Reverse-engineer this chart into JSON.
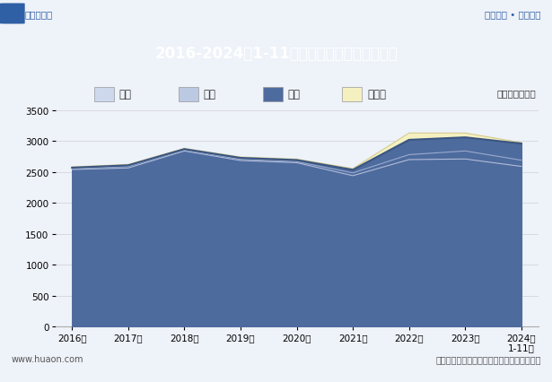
{
  "title": "2016-2024年1-11月河南省各发电类型发电量",
  "unit_label": "单位：亿千瓦时",
  "years": [
    "2016年",
    "2017年",
    "2018年",
    "2019年",
    "2020年",
    "2021年",
    "2022年",
    "2023年",
    "2024年\n1-11月"
  ],
  "fire_power": [
    2540,
    2565,
    2840,
    2685,
    2650,
    2440,
    2700,
    2710,
    2590
  ],
  "wind_power": [
    2555,
    2590,
    2858,
    2705,
    2668,
    2485,
    2780,
    2840,
    2690
  ],
  "water_power": [
    2570,
    2608,
    2870,
    2728,
    2693,
    2535,
    3020,
    3060,
    2960
  ],
  "solar_power": [
    2582,
    2622,
    2882,
    2742,
    2708,
    2555,
    3130,
    3130,
    2975
  ],
  "fire_color": "#cdd8ec",
  "wind_color": "#bcc9e2",
  "water_color": "#4e6b9e",
  "solar_color": "#f5f0c0",
  "ylim": [
    0,
    3500
  ],
  "yticks": [
    0,
    500,
    1000,
    1500,
    2000,
    2500,
    3000,
    3500
  ],
  "legend_labels": [
    "火力",
    "风力",
    "水力",
    "太阳能"
  ],
  "title_text": "2016-2024年1-11月河南省各发电类型发电量",
  "unit_text": "单位：亿千瓦时",
  "source_text": "数据来源：国家统计局，华经产业研究院整理",
  "website_left": "www.huaon.com",
  "top_left": "华经情报网",
  "top_right": "专业严谨 • 客观科学",
  "header_bg": "#2f5fa5",
  "chart_bg": "#eef2f9",
  "top_strip_bg": "#dce6f4"
}
